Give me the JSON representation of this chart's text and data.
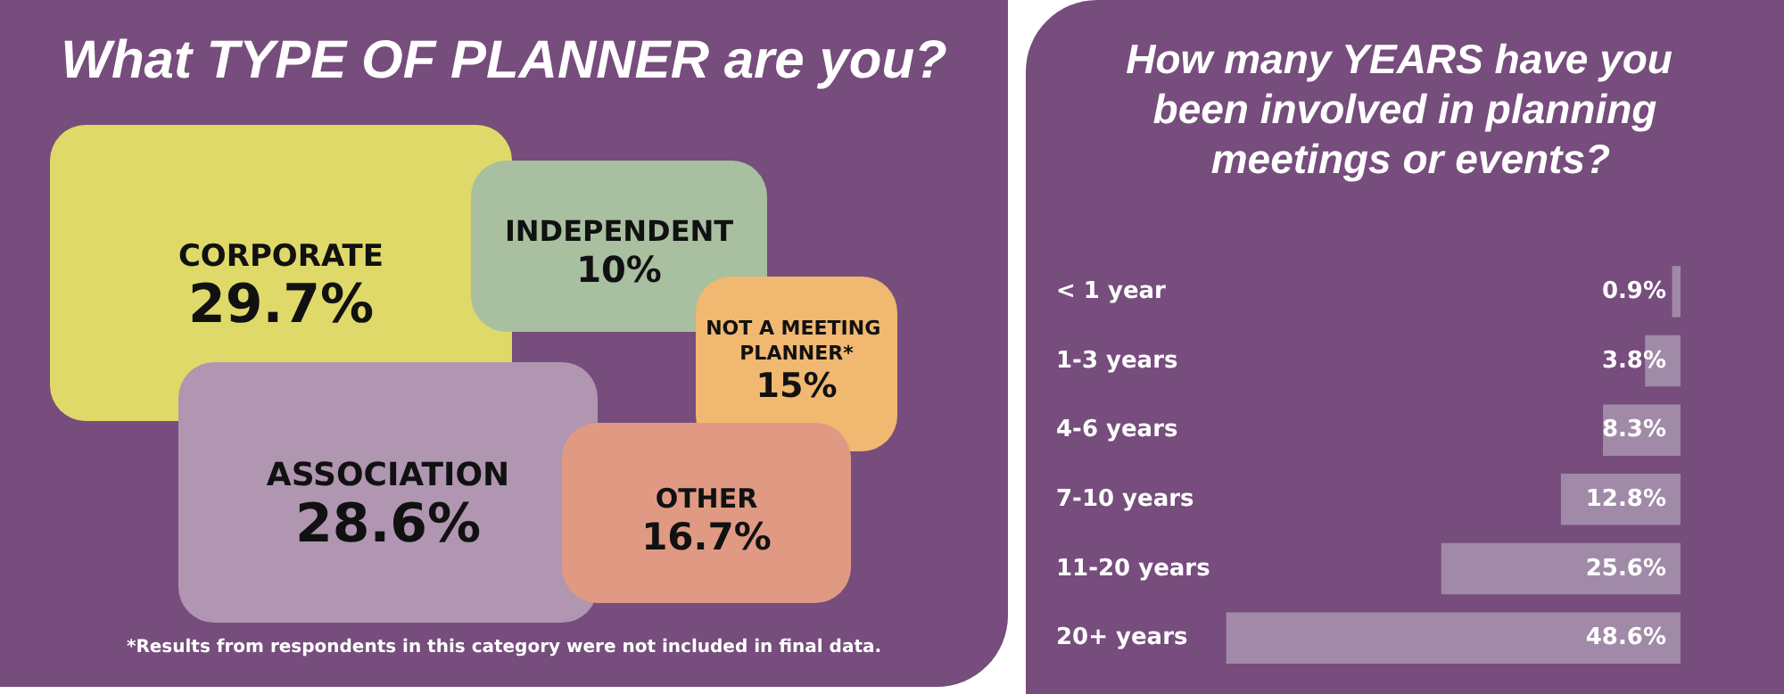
{
  "chart_data": [
    {
      "type": "other",
      "title": "What TYPE OF PLANNER are you?",
      "categories": [
        "CORPORATE",
        "INDEPENDENT",
        "NOT A MEETING PLANNER*",
        "ASSOCIATION",
        "OTHER"
      ],
      "values": [
        29.7,
        10,
        15,
        28.6,
        16.7
      ],
      "value_labels": [
        "29.7%",
        "10%",
        "15%",
        "28.6%",
        "16.7%"
      ],
      "colors": [
        "#dfd96a",
        "#a8bfa0",
        "#f0b870",
        "#b096b0",
        "#e09a84"
      ],
      "annotations": [
        "*Results from respondents in this category were not included in final data."
      ]
    },
    {
      "type": "bar",
      "orientation": "horizontal",
      "title": "How many YEARS have you been involved in planning meetings or events?",
      "categories": [
        "< 1 year",
        "1-3 years",
        "4-6 years",
        "7-10 years",
        "11-20 years",
        "20+ years"
      ],
      "values": [
        0.9,
        3.8,
        8.3,
        12.8,
        25.6,
        48.6
      ],
      "value_labels": [
        "0.9%",
        "3.8%",
        "8.3%",
        "12.8%",
        "25.6%",
        "48.6%"
      ],
      "color": "#a08aa8"
    }
  ]
}
